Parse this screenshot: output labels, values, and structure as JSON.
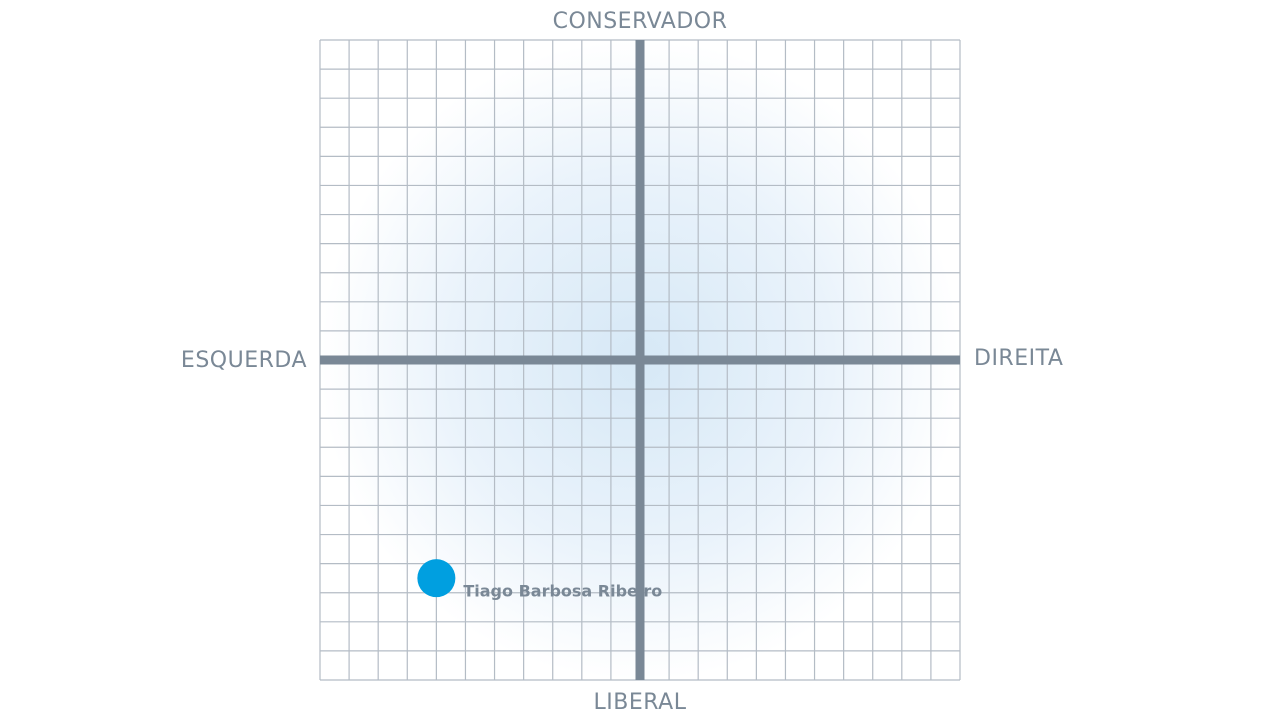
{
  "chart_data": {
    "type": "scatter",
    "axis_labels": {
      "top": "CONSERVADOR",
      "bottom": "LIBERAL",
      "left": "ESQUERDA",
      "right": "DIREITA"
    },
    "xlim": [
      -11,
      11
    ],
    "ylim": [
      -11,
      11
    ],
    "xticks": [
      -11,
      -10,
      -9,
      -8,
      -7,
      -6,
      -5,
      -4,
      -3,
      -2,
      -1,
      0,
      1,
      2,
      3,
      4,
      5,
      6,
      7,
      8,
      9,
      10,
      11
    ],
    "yticks": [
      -11,
      -10,
      -9,
      -8,
      -7,
      -6,
      -5,
      -4,
      -3,
      -2,
      -1,
      0,
      1,
      2,
      3,
      4,
      5,
      6,
      7,
      8,
      9,
      10,
      11
    ],
    "grid": true,
    "series": [
      {
        "name": "Tiago Barbosa Ribeiro",
        "color": "#009fe0",
        "x": [
          -7
        ],
        "values": [
          -7.5
        ]
      }
    ]
  }
}
